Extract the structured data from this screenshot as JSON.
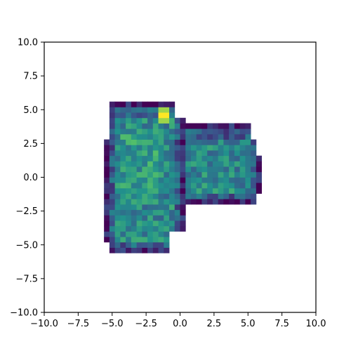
{
  "chart_data": {
    "type": "heatmap",
    "title": "",
    "xlabel": "",
    "ylabel": "",
    "xlim": [
      -10.0,
      10.0
    ],
    "ylim": [
      -10.0,
      10.0
    ],
    "grid": false,
    "colormap": "viridis",
    "colormap_stops": [
      "#440154",
      "#3b528b",
      "#21918c",
      "#5ec962",
      "#fde725"
    ],
    "bins": 50,
    "bin_width": 0.4,
    "description_of_support": "2D histogram of points filling an irregular blob: a larger left lobe spanning roughly x in [-5.6, 0.4], y in [-5.6, 5.4] and a smaller right lobe spanning roughly x in [0.8, 6.0], y in [-2.0, 3.8]",
    "x_ticks": [
      -10.0,
      -7.5,
      -5.0,
      -2.5,
      0.0,
      2.5,
      5.0,
      7.5,
      10.0
    ],
    "x_tick_labels": [
      "−10.0",
      "−7.5",
      "−5.0",
      "−2.5",
      "0.0",
      "2.5",
      "5.0",
      "7.5",
      "10.0"
    ],
    "y_ticks": [
      10.0,
      7.5,
      5.0,
      2.5,
      0.0,
      -2.5,
      -5.0,
      -7.5,
      -10.0
    ],
    "y_tick_labels": [
      "10.0",
      "7.5",
      "5.0",
      "2.5",
      "0.0",
      "−2.5",
      "−5.0",
      "−7.5",
      "−10.0"
    ],
    "hotspot": {
      "x": -1.2,
      "y": 4.5
    }
  }
}
